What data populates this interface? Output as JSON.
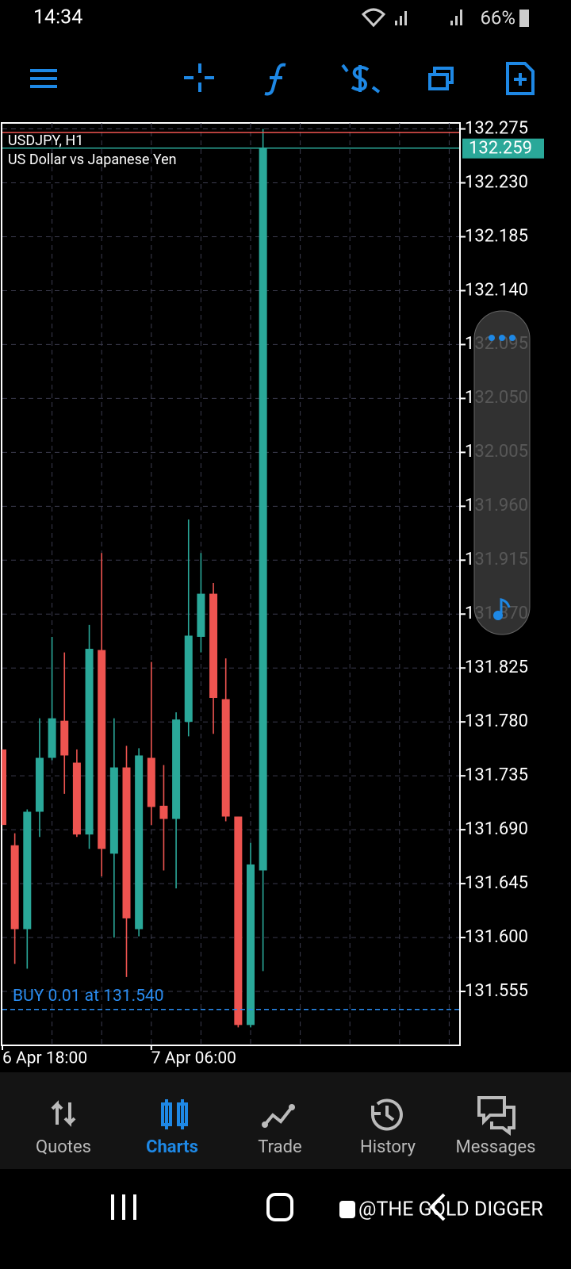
{
  "status_bar": {
    "time": "14:34",
    "battery": "66%"
  },
  "chart_data": {
    "type": "candlestick",
    "symbol": "USDJPY, H1",
    "description": "US Dollar vs Japanese Yen",
    "categories": [
      "6 Apr 18:00",
      null,
      null,
      null,
      null,
      null,
      null,
      null,
      null,
      null,
      null,
      null,
      "7 Apr 06:00",
      null,
      null,
      null,
      null,
      null,
      null,
      null,
      null,
      null
    ],
    "open": [
      131.757,
      131.677,
      131.607,
      131.705,
      131.75,
      131.781,
      131.746,
      131.686,
      131.84,
      131.67,
      131.742,
      131.607,
      131.75,
      131.71,
      131.699,
      131.78,
      131.851,
      131.887,
      131.799,
      131.701,
      131.527,
      131.656
    ],
    "high": [
      131.757,
      131.687,
      131.707,
      131.783,
      131.851,
      131.838,
      131.757,
      131.861,
      131.921,
      131.783,
      131.76,
      131.758,
      131.83,
      131.744,
      131.788,
      131.949,
      131.921,
      131.896,
      131.833,
      131.701,
      131.679,
      132.275
    ],
    "low": [
      131.694,
      131.578,
      131.574,
      131.684,
      131.748,
      131.72,
      131.684,
      131.674,
      131.651,
      131.6,
      131.567,
      131.601,
      131.694,
      131.656,
      131.641,
      131.768,
      131.838,
      131.77,
      131.697,
      131.525,
      131.525,
      131.572
    ],
    "close": [
      131.694,
      131.607,
      131.705,
      131.75,
      131.783,
      131.752,
      131.686,
      131.841,
      131.674,
      131.742,
      131.616,
      131.752,
      131.709,
      131.699,
      131.782,
      131.852,
      131.887,
      131.8,
      131.701,
      131.527,
      131.661,
      132.259
    ],
    "up_color": "#2aa899",
    "down_color": "#ee5450",
    "ylim": [
      131.51,
      132.28
    ],
    "yticks": [
      132.275,
      {
        "value": 132.23,
        "label": "132.230"
      },
      132.185,
      {
        "value": 132.14,
        "label": "132.140"
      },
      132.095,
      {
        "value": 132.05,
        "label": "132.050"
      },
      132.005,
      {
        "value": 131.96,
        "label": "131.960"
      },
      131.915,
      {
        "value": 131.87,
        "label": "131.870"
      },
      131.825,
      {
        "value": 131.78,
        "label": "131.780"
      },
      131.735,
      {
        "value": 131.69,
        "label": "131.690"
      },
      131.645,
      {
        "value": 131.6,
        "label": "131.600"
      },
      131.555
    ],
    "grid": true,
    "bid": 132.259,
    "ask": 132.272,
    "order": {
      "label": "BUY 0.01 at 131.540",
      "price": 131.54
    }
  },
  "nav": [
    "Quotes",
    "Charts",
    "Trade",
    "History",
    "Messages"
  ],
  "active_tab": 1,
  "watermark": "@THE GOLD DIGGER"
}
